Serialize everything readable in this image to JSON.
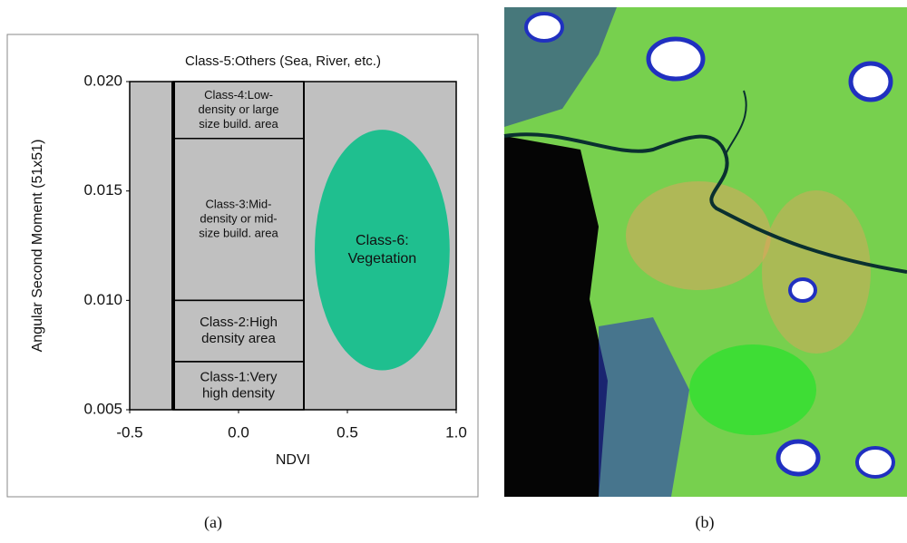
{
  "chart_data": {
    "type": "region",
    "title": "Class-5:Others (Sea, River, etc.)",
    "x_label": "NDVI",
    "y_label": "Angular Second Moment (51x51)",
    "xlim": [
      -0.5,
      1.0
    ],
    "ylim": [
      0.005,
      0.02
    ],
    "xticks": [
      {
        "value": -0.5,
        "label": "-0.5"
      },
      {
        "value": 0,
        "label": "0.0"
      },
      {
        "value": 0.5,
        "label": "0.5"
      },
      {
        "value": 1,
        "label": "1.0"
      }
    ],
    "yticks": [
      {
        "value": 0.005,
        "label": "0.005"
      },
      {
        "value": 0.01,
        "label": "0.010"
      },
      {
        "value": 0.015,
        "label": "0.015"
      },
      {
        "value": 0.02,
        "label": "0.020"
      }
    ],
    "background_color": "#c0c0c0",
    "regions": [
      {
        "label": [
          "Class-1:Very",
          "high density"
        ],
        "x": [
          -0.3,
          0.3
        ],
        "y": [
          0.005,
          0.0072
        ]
      },
      {
        "label": [
          "Class-2:High",
          "density area"
        ],
        "x": [
          -0.3,
          0.3
        ],
        "y": [
          0.0072,
          0.01
        ]
      },
      {
        "label": [
          "Class-3:Mid-",
          "density or mid-",
          "size build. area"
        ],
        "x": [
          -0.3,
          0.3
        ],
        "y": [
          0.01,
          0.0174
        ]
      },
      {
        "label": [
          "Class-4:Low-",
          "density or large",
          "size build. area"
        ],
        "x": [
          -0.3,
          0.3
        ],
        "y": [
          0.0174,
          0.02
        ]
      }
    ],
    "ellipse": {
      "label": [
        "Class-6:",
        "Vegetation"
      ],
      "center": [
        0.66,
        0.0123
      ],
      "radius": [
        0.31,
        0.0055
      ],
      "color": "#1fbf8f"
    }
  },
  "panels": [
    "(a)",
    "(b)"
  ]
}
